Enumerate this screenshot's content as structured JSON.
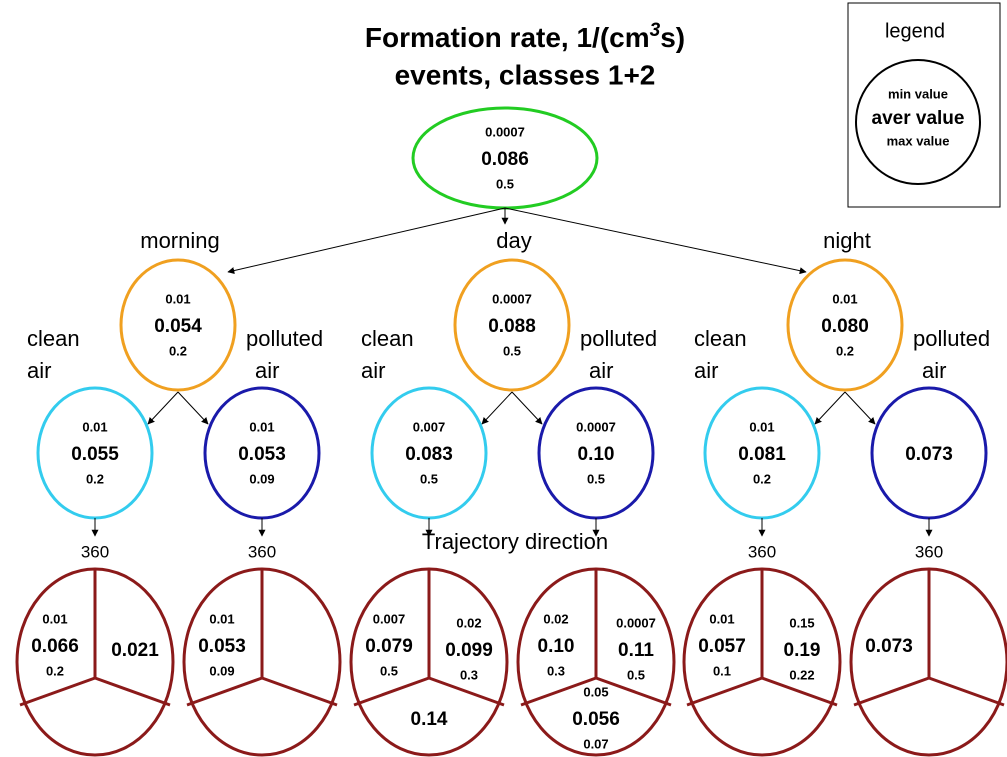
{
  "title": {
    "line1": [
      "Formation rate, 1/(cm",
      "3",
      "s)"
    ],
    "line2": "events, classes 1+2"
  },
  "legend": {
    "title": "legend",
    "min": "min value",
    "aver": "aver value",
    "max": "max value"
  },
  "root": {
    "min": "0.0007",
    "aver": "0.086",
    "max": "0.5"
  },
  "trajectory_label": "Trajectory direction",
  "periods": [
    {
      "name": "morning",
      "stats": {
        "min": "0.01",
        "aver": "0.054",
        "max": "0.2"
      },
      "branches": [
        {
          "label": [
            "clean",
            "air"
          ],
          "stats": {
            "min": "0.01",
            "aver": "0.055",
            "max": "0.2"
          },
          "direction": "360",
          "sectors": {
            "left": {
              "min": "0.01",
              "aver": "0.066",
              "max": "0.2"
            },
            "right": {
              "aver": "0.021"
            }
          }
        },
        {
          "label": [
            "polluted",
            "air"
          ],
          "stats": {
            "min": "0.01",
            "aver": "0.053",
            "max": "0.09"
          },
          "direction": "360",
          "sectors": {
            "left": {
              "min": "0.01",
              "aver": "0.053",
              "max": "0.09"
            }
          }
        }
      ]
    },
    {
      "name": "day",
      "stats": {
        "min": "0.0007",
        "aver": "0.088",
        "max": "0.5"
      },
      "branches": [
        {
          "label": [
            "clean",
            "air"
          ],
          "stats": {
            "min": "0.007",
            "aver": "0.083",
            "max": "0.5"
          },
          "sectors": {
            "left": {
              "min": "0.007",
              "aver": "0.079",
              "max": "0.5"
            },
            "right": {
              "min": "0.02",
              "aver": "0.099",
              "max": "0.3"
            },
            "bottom": {
              "aver": "0.14"
            }
          }
        },
        {
          "label": [
            "polluted",
            "air"
          ],
          "stats": {
            "min": "0.0007",
            "aver": "0.10",
            "max": "0.5"
          },
          "sectors": {
            "left": {
              "min": "0.02",
              "aver": "0.10",
              "max": "0.3"
            },
            "right": {
              "min": "0.0007",
              "aver": "0.11",
              "max": "0.5"
            },
            "bottom": {
              "min": "0.05",
              "aver": "0.056",
              "max": "0.07"
            }
          }
        }
      ]
    },
    {
      "name": "night",
      "stats": {
        "min": "0.01",
        "aver": "0.080",
        "max": "0.2"
      },
      "branches": [
        {
          "label": [
            "clean",
            "air"
          ],
          "stats": {
            "min": "0.01",
            "aver": "0.081",
            "max": "0.2"
          },
          "direction": "360",
          "sectors": {
            "left": {
              "min": "0.01",
              "aver": "0.057",
              "max": "0.1"
            },
            "right": {
              "min": "0.15",
              "aver": "0.19",
              "max": "0.22"
            }
          }
        },
        {
          "label": [
            "polluted",
            "air"
          ],
          "stats": {
            "aver": "0.073"
          },
          "direction": "360",
          "sectors": {
            "left": {
              "aver": "0.073"
            }
          }
        }
      ]
    }
  ]
}
